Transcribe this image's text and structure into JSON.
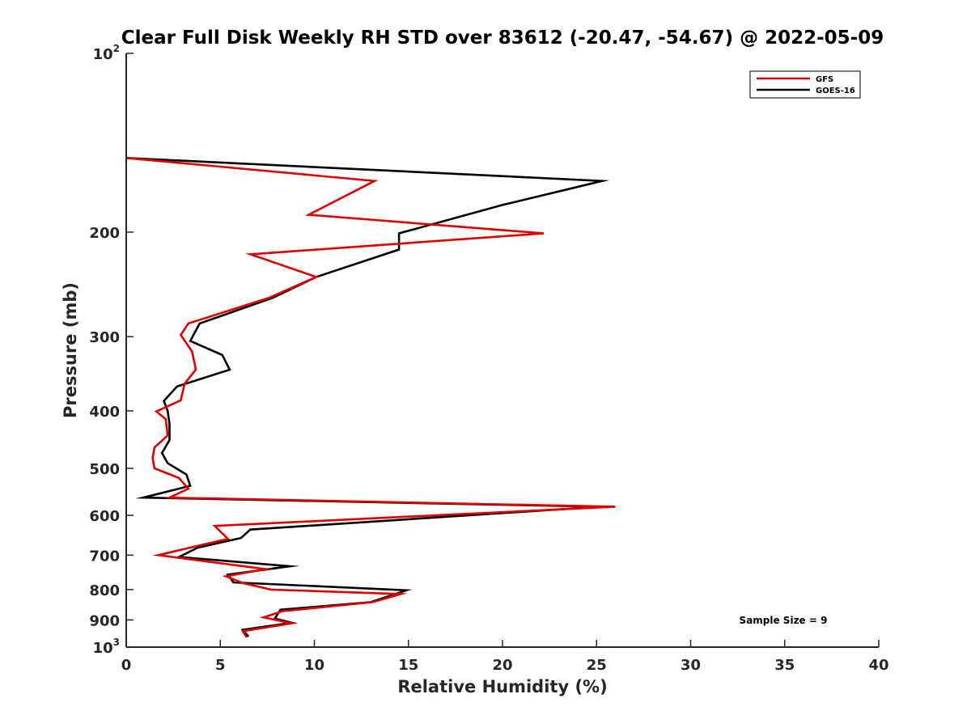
{
  "chart_data": {
    "type": "line",
    "title": "Clear Full Disk Weekly RH STD over 83612 (-20.47, -54.67) @ 2022-05-09",
    "xlabel": "Relative Humidity (%)",
    "ylabel": "Pressure (mb)",
    "xlim": [
      0,
      40
    ],
    "ylim": [
      100,
      1000
    ],
    "y_scale": "log",
    "y_reversed": true,
    "grid": false,
    "legend_position": "top-right",
    "x_ticks": [
      "0",
      "5",
      "10",
      "15",
      "20",
      "25",
      "30",
      "35",
      "40"
    ],
    "x_tick_values": [
      0,
      5,
      10,
      15,
      20,
      25,
      30,
      35,
      40
    ],
    "y_ticks": [
      {
        "value": 100,
        "base": "10",
        "exp": "2"
      },
      {
        "value": 200,
        "label": "200"
      },
      {
        "value": 300,
        "label": "300"
      },
      {
        "value": 400,
        "label": "400"
      },
      {
        "value": 500,
        "label": "500"
      },
      {
        "value": 600,
        "label": "600"
      },
      {
        "value": 700,
        "label": "700"
      },
      {
        "value": 800,
        "label": "800"
      },
      {
        "value": 900,
        "label": "900"
      },
      {
        "value": 1000,
        "base": "10",
        "exp": "3"
      }
    ],
    "series": [
      {
        "name": "GFS",
        "color": "#e00000",
        "points": [
          [
            0,
            150
          ],
          [
            13.2,
            164
          ],
          [
            9.7,
            187
          ],
          [
            22.2,
            201
          ],
          [
            6.6,
            218
          ],
          [
            10.1,
            238
          ],
          [
            7.6,
            258
          ],
          [
            3.3,
            285
          ],
          [
            2.9,
            298
          ],
          [
            3.5,
            318
          ],
          [
            3.7,
            341
          ],
          [
            3.1,
            360
          ],
          [
            2.9,
            384
          ],
          [
            1.6,
            401
          ],
          [
            2.1,
            413
          ],
          [
            2.2,
            440
          ],
          [
            1.5,
            461
          ],
          [
            1.4,
            480
          ],
          [
            1.5,
            500
          ],
          [
            2.8,
            519
          ],
          [
            3.3,
            541
          ],
          [
            2.3,
            560
          ],
          [
            26,
            580
          ],
          [
            4.7,
            625
          ],
          [
            5.4,
            657
          ],
          [
            1.7,
            700
          ],
          [
            7.4,
            739
          ],
          [
            5.3,
            760
          ],
          [
            6.2,
            780
          ],
          [
            7.7,
            800
          ],
          [
            14.6,
            814
          ],
          [
            13.1,
            840
          ],
          [
            8.3,
            870
          ],
          [
            7.3,
            891
          ],
          [
            8.8,
            912
          ],
          [
            6.2,
            940
          ],
          [
            6.4,
            963
          ]
        ]
      },
      {
        "name": "GOES-16",
        "color": "#000000",
        "points": [
          [
            0,
            150
          ],
          [
            25.3,
            164
          ],
          [
            20,
            180
          ],
          [
            14.5,
            201
          ],
          [
            14.5,
            214
          ],
          [
            10.1,
            238
          ],
          [
            7.8,
            258
          ],
          [
            3.9,
            285
          ],
          [
            3.4,
            305
          ],
          [
            5.1,
            322
          ],
          [
            5.5,
            341
          ],
          [
            2.7,
            364
          ],
          [
            2,
            385
          ],
          [
            2.2,
            400
          ],
          [
            2.3,
            420
          ],
          [
            2.3,
            448
          ],
          [
            1.9,
            471
          ],
          [
            2.2,
            490
          ],
          [
            3.2,
            512
          ],
          [
            3.4,
            535
          ],
          [
            0.9,
            560
          ],
          [
            25.2,
            580
          ],
          [
            6.6,
            634
          ],
          [
            6.1,
            655
          ],
          [
            3.8,
            680
          ],
          [
            2.8,
            705
          ],
          [
            8.7,
            731
          ],
          [
            5.4,
            755
          ],
          [
            5.7,
            778
          ],
          [
            14.9,
            802
          ],
          [
            13,
            840
          ],
          [
            8.2,
            865
          ],
          [
            7.9,
            895
          ],
          [
            8.8,
            910
          ],
          [
            6.2,
            935
          ],
          [
            6.5,
            960
          ]
        ]
      }
    ],
    "annotations": [
      "Sample Size = 9"
    ]
  }
}
